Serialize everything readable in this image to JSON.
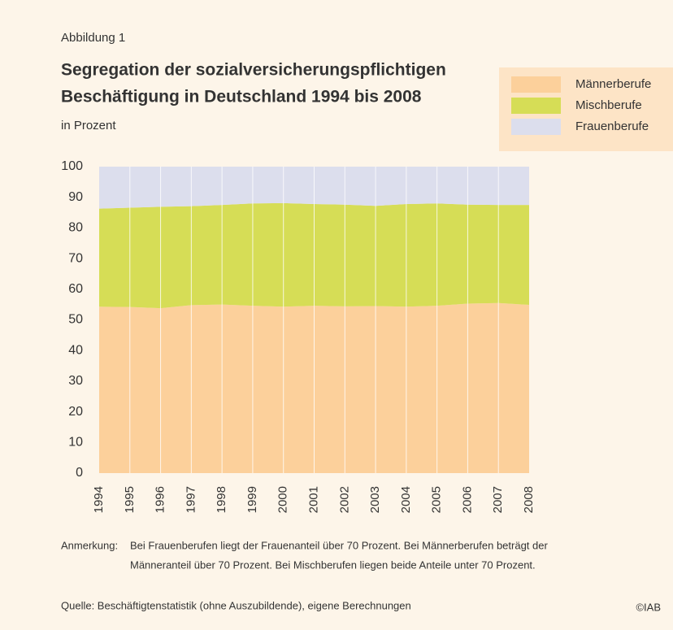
{
  "chart_data": {
    "type": "stacked-area",
    "figure_label": "Abbildung 1",
    "title": [
      "Segregation der sozialversicherungspflichtigen",
      "Beschäftigung in Deutschland 1994 bis 2008"
    ],
    "subtitle": "in Prozent",
    "categories": [
      "1994",
      "1995",
      "1996",
      "1997",
      "1998",
      "1999",
      "2000",
      "2001",
      "2002",
      "2003",
      "2004",
      "2005",
      "2006",
      "2007",
      "2008"
    ],
    "series": [
      {
        "name": "Männerberufe",
        "color": "#fcd09b",
        "values": [
          54.3,
          54.2,
          53.8,
          54.8,
          55.0,
          54.6,
          54.3,
          54.6,
          54.4,
          54.5,
          54.3,
          54.6,
          55.3,
          55.5,
          54.9
        ]
      },
      {
        "name": "Mischberufe",
        "color": "#d6dd56",
        "values": [
          32.0,
          32.4,
          33.1,
          32.3,
          32.5,
          33.4,
          33.8,
          33.2,
          33.2,
          32.7,
          33.5,
          33.4,
          32.3,
          32.0,
          32.6
        ]
      },
      {
        "name": "Frauenberufe",
        "color": "#dcdeed",
        "values": [
          13.7,
          13.4,
          13.1,
          12.9,
          12.5,
          12.0,
          11.9,
          12.2,
          12.4,
          12.8,
          12.2,
          12.0,
          12.4,
          12.5,
          12.5
        ]
      }
    ],
    "ylim": [
      0,
      100
    ],
    "yticks": [
      0,
      10,
      20,
      30,
      40,
      50,
      60,
      70,
      80,
      90,
      100
    ],
    "note": {
      "label": "Anmerkung:",
      "lines": [
        "Bei Frauenberufen liegt der Frauenanteil über 70 Prozent. Bei Männerberufen beträgt der",
        "Männeranteil über 70 Prozent. Bei Mischberufen liegen beide Anteile unter 70 Prozent."
      ]
    },
    "source": "Quelle: Beschäftigtenstatistik (ohne Auszubildende), eigene Berechnungen",
    "copyright": "©IAB"
  }
}
